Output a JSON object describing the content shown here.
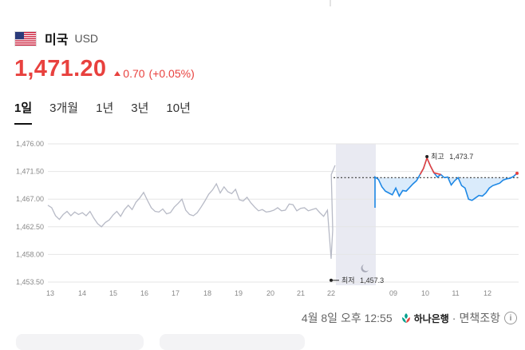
{
  "header": {
    "country": "미국",
    "currency": "USD",
    "flag_icon": "us-flag-icon"
  },
  "price": {
    "value": "1,471.20",
    "change": "0.70",
    "change_pct": "(+0.05%)",
    "direction": "up",
    "color": "#e8413e"
  },
  "tabs": [
    {
      "label": "1일",
      "active": true
    },
    {
      "label": "3개월",
      "active": false
    },
    {
      "label": "1년",
      "active": false
    },
    {
      "label": "3년",
      "active": false
    },
    {
      "label": "10년",
      "active": false
    }
  ],
  "chart_data": {
    "type": "line",
    "y_ticks": [
      "1,476.00",
      "1,471.50",
      "1,467.00",
      "1,462.50",
      "1,458.00",
      "1,453.50"
    ],
    "ylim": [
      1453.5,
      1476.0
    ],
    "x_ticks": [
      "13",
      "14",
      "15",
      "16",
      "17",
      "18",
      "19",
      "20",
      "21",
      "22",
      "09",
      "10",
      "11",
      "12"
    ],
    "reference_value": 1470.5,
    "high": {
      "label": "최고",
      "value": "1,473.7"
    },
    "low": {
      "label": "최저",
      "value": "1,457.3"
    },
    "series": [
      {
        "color": "#b7bac6",
        "values": [
          1466.0,
          1465.6,
          1464.3,
          1463.7,
          1464.5,
          1465.0,
          1464.3,
          1464.9,
          1464.5,
          1464.8,
          1464.3,
          1465.0,
          1463.9,
          1463.0,
          1462.5,
          1463.2,
          1463.6,
          1464.4,
          1465.0,
          1464.2,
          1465.3,
          1466.0,
          1465.3,
          1466.5,
          1467.2,
          1468.1,
          1466.8,
          1465.6,
          1465.0,
          1464.9,
          1465.4,
          1464.6,
          1464.8,
          1465.7,
          1466.3,
          1467.0,
          1465.2,
          1464.5,
          1464.3,
          1464.8,
          1465.7,
          1466.7,
          1467.8,
          1468.5,
          1469.5,
          1468.0,
          1469.0,
          1468.2,
          1467.9,
          1468.6,
          1466.9,
          1466.7,
          1467.3,
          1466.4,
          1465.7,
          1465.1,
          1465.3,
          1464.9,
          1465.0,
          1465.2,
          1465.6,
          1465.1,
          1465.2,
          1466.2,
          1466.1,
          1465.1,
          1465.5,
          1465.6,
          1465.1,
          1465.3,
          1465.5,
          1464.8,
          1464.2,
          1465.2,
          1471.0,
          1472.5
        ]
      },
      {
        "color": "#1e88e5",
        "values": [
          1470.6,
          1470.2,
          1469.0,
          1468.3,
          1468.0,
          1467.7,
          1468.8,
          1467.5,
          1468.4,
          1468.3,
          1468.9,
          1469.5,
          1470.0,
          1471.0,
          1472.0,
          1473.7,
          1472.4,
          1471.3,
          1470.6,
          1471.0,
          1470.5,
          1470.6,
          1469.3,
          1470.0,
          1470.5,
          1469.2,
          1468.8,
          1467.0,
          1466.8,
          1467.2,
          1467.6,
          1467.5,
          1468.0,
          1468.8,
          1469.2,
          1469.4,
          1469.6,
          1470.1,
          1470.3,
          1470.4,
          1470.7,
          1471.2
        ]
      }
    ],
    "legend": "none",
    "grid": true
  },
  "footer": {
    "timestamp": "4월 8일 오후 12:55",
    "provider": "하나은행",
    "separator": "·",
    "disclaimer": "면책조항",
    "info_icon": "i"
  }
}
